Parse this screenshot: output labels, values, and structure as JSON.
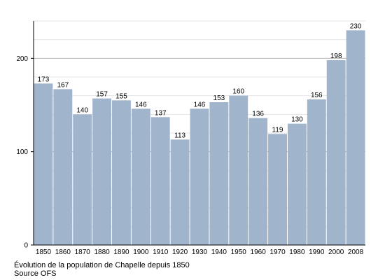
{
  "chart_data": {
    "type": "bar",
    "categories": [
      "1850",
      "1860",
      "1870",
      "1880",
      "1890",
      "1900",
      "1910",
      "1920",
      "1930",
      "1940",
      "1950",
      "1960",
      "1970",
      "1980",
      "1990",
      "2000",
      "2008"
    ],
    "values": [
      173,
      167,
      140,
      157,
      155,
      146,
      137,
      113,
      146,
      153,
      160,
      136,
      119,
      130,
      156,
      198,
      230
    ],
    "ylim": [
      0,
      240
    ],
    "y_ticks": [
      0,
      100,
      200
    ],
    "grid": true,
    "bar_color": "#a0b4cc",
    "title": "",
    "xlabel": "",
    "ylabel": ""
  },
  "caption": {
    "line1": "Évolution de la population de Chapelle depuis 1850",
    "line2": "Source OFS"
  }
}
